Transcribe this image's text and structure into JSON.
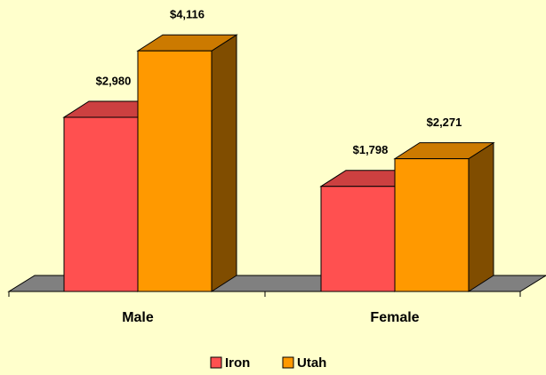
{
  "chart_data": {
    "type": "bar3d",
    "categories": [
      "Male",
      "Female"
    ],
    "series": [
      {
        "name": "Iron",
        "color": "#ff5050",
        "values": [
          2980,
          1798
        ],
        "value_labels": [
          "$2,980",
          "$1,798"
        ]
      },
      {
        "name": "Utah",
        "color": "#ff9900",
        "values": [
          4116,
          2271
        ],
        "value_labels": [
          "$4,116",
          "$2,271"
        ]
      }
    ],
    "ylim": [
      0,
      4500
    ]
  }
}
